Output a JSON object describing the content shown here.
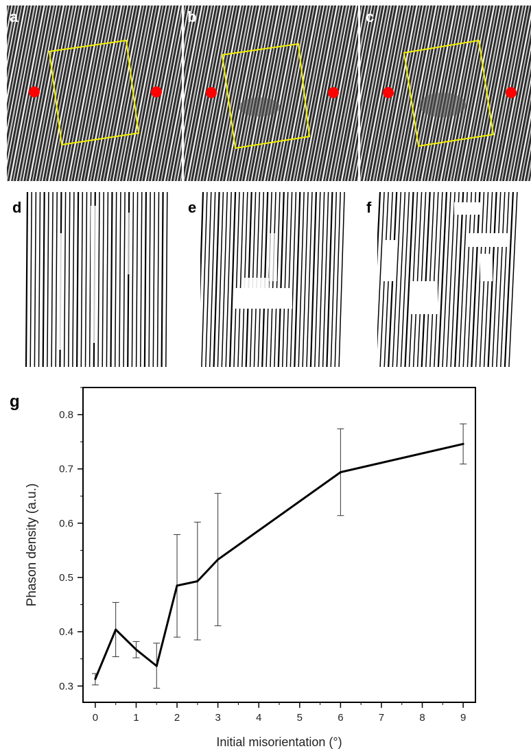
{
  "panels": {
    "a": "a",
    "b": "b",
    "c": "c",
    "d": "d",
    "e": "e",
    "f": "f",
    "g": "g"
  },
  "colors": {
    "marker": "#ff0000",
    "box": "#f4f000",
    "stripe_dark": "#2a2a2a",
    "line": "#000000"
  },
  "chart_data": {
    "type": "line",
    "xlabel": "Initial misorientation (°)",
    "ylabel": "Phason density (a.u.)",
    "x": [
      0,
      0.5,
      1,
      1.5,
      2,
      2.5,
      3,
      6,
      9
    ],
    "y": [
      0.313,
      0.404,
      0.367,
      0.337,
      0.485,
      0.493,
      0.533,
      0.694,
      0.746
    ],
    "yerr_low": [
      0.302,
      0.354,
      0.352,
      0.296,
      0.39,
      0.385,
      0.411,
      0.614,
      0.709
    ],
    "yerr_high": [
      0.323,
      0.454,
      0.382,
      0.379,
      0.579,
      0.602,
      0.655,
      0.774,
      0.783
    ],
    "xlim": [
      -0.3,
      9.3
    ],
    "ylim": [
      0.27,
      0.85
    ],
    "xticks": [
      0,
      1,
      2,
      3,
      4,
      5,
      6,
      7,
      8,
      9
    ],
    "yticks": [
      0.3,
      0.4,
      0.5,
      0.6,
      0.7,
      0.8
    ],
    "grid": false,
    "legend": "none"
  }
}
